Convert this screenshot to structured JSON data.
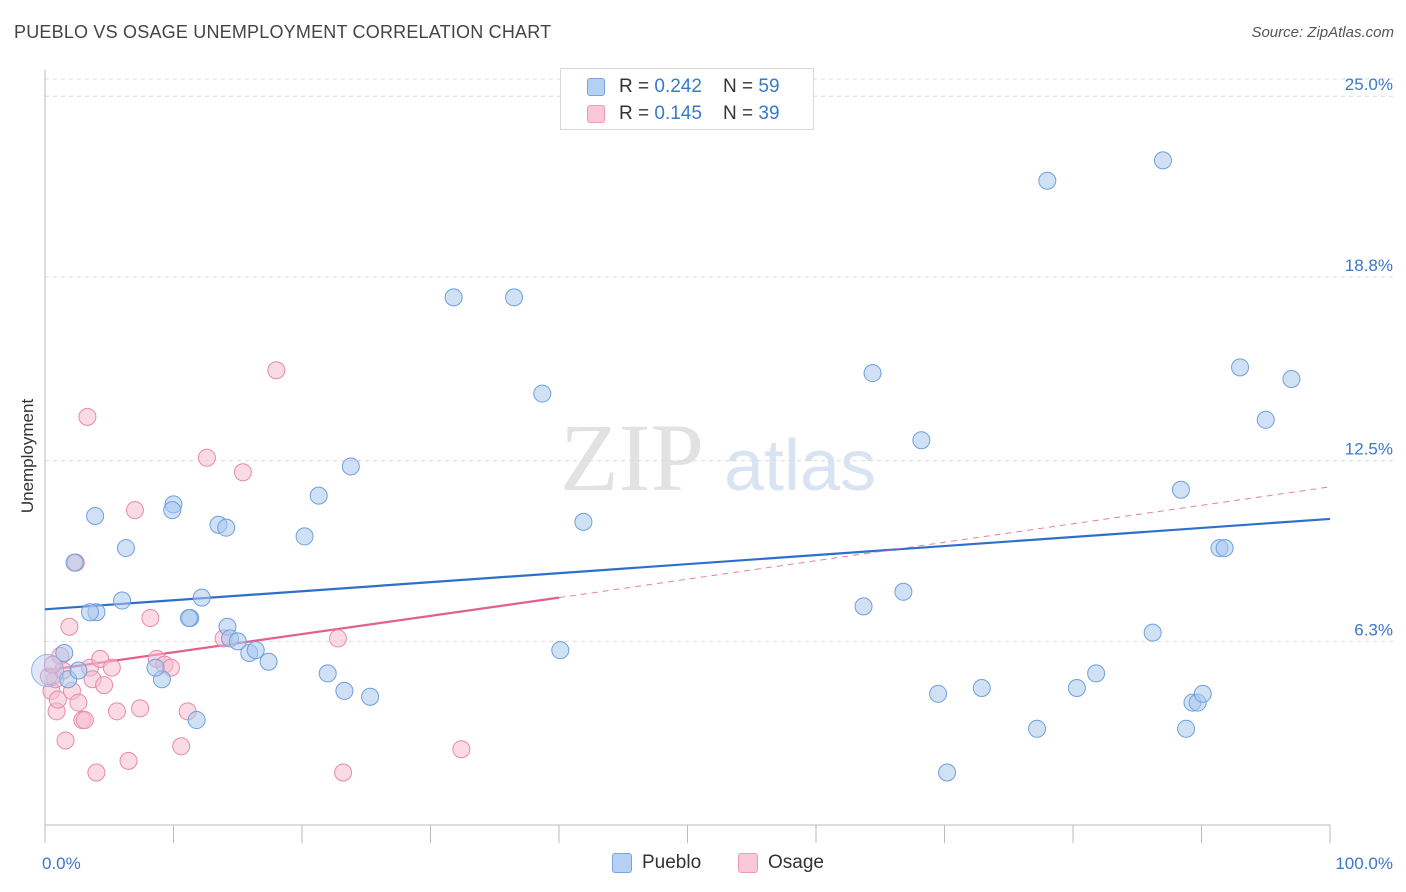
{
  "chart_data": {
    "type": "scatter",
    "title": "PUEBLO VS OSAGE UNEMPLOYMENT CORRELATION CHART",
    "source": "Source: ZipAtlas.com",
    "watermark": {
      "zip": "ZIP",
      "atlas": "atlas"
    },
    "xlabel": "",
    "ylabel": "Unemployment",
    "xlim": [
      0,
      100
    ],
    "ylim": [
      0,
      25.9
    ],
    "x_tick_labels": [
      "0.0%",
      "100.0%"
    ],
    "y_ticks": [
      {
        "value": 6.3,
        "label": "6.3%"
      },
      {
        "value": 12.5,
        "label": "12.5%"
      },
      {
        "value": 18.8,
        "label": "18.8%"
      },
      {
        "value": 25.0,
        "label": "25.0%"
      }
    ],
    "grid": true,
    "legend_stats": [
      {
        "series": "Pueblo",
        "r_label": "R = ",
        "r_value": "0.242",
        "n_label": "N = ",
        "n_value": "59"
      },
      {
        "series": "Osage",
        "r_label": "R = ",
        "r_value": "0.145",
        "n_label": "N = ",
        "n_value": "39"
      }
    ],
    "series": [
      {
        "name": "Pueblo",
        "color": "#a9c8ef",
        "edge": "#6f9fdc",
        "trend": {
          "x0": 0,
          "y0": 7.4,
          "x1": 100,
          "y1": 10.5,
          "color": "#2f6fcc"
        },
        "points": [
          [
            22.0,
            5.2
          ],
          [
            1.5,
            5.9
          ],
          [
            1.8,
            5.0
          ],
          [
            4.0,
            7.3
          ],
          [
            6.0,
            7.7
          ],
          [
            3.5,
            7.3
          ],
          [
            2.3,
            9.0
          ],
          [
            3.9,
            10.6
          ],
          [
            6.3,
            9.5
          ],
          [
            9.1,
            5.0
          ],
          [
            8.6,
            5.4
          ],
          [
            10.0,
            11.0
          ],
          [
            9.9,
            10.8
          ],
          [
            11.3,
            7.1
          ],
          [
            11.8,
            3.6
          ],
          [
            11.2,
            7.1
          ],
          [
            12.2,
            7.8
          ],
          [
            13.5,
            10.3
          ],
          [
            14.1,
            10.2
          ],
          [
            14.2,
            6.8
          ],
          [
            14.4,
            6.4
          ],
          [
            15.0,
            6.3
          ],
          [
            15.9,
            5.9
          ],
          [
            16.4,
            6.0
          ],
          [
            17.4,
            5.6
          ],
          [
            20.2,
            9.9
          ],
          [
            21.3,
            11.3
          ],
          [
            23.3,
            4.6
          ],
          [
            23.8,
            12.3
          ],
          [
            25.3,
            4.4
          ],
          [
            31.8,
            18.1
          ],
          [
            36.5,
            18.1
          ],
          [
            38.7,
            14.8
          ],
          [
            40.1,
            6.0
          ],
          [
            41.9,
            10.4
          ],
          [
            63.7,
            7.5
          ],
          [
            64.4,
            15.5
          ],
          [
            66.8,
            8.0
          ],
          [
            68.2,
            13.2
          ],
          [
            69.5,
            4.5
          ],
          [
            70.2,
            1.8
          ],
          [
            72.9,
            4.7
          ],
          [
            77.2,
            3.3
          ],
          [
            78.0,
            22.1
          ],
          [
            80.3,
            4.7
          ],
          [
            81.8,
            5.2
          ],
          [
            86.2,
            6.6
          ],
          [
            87.0,
            22.8
          ],
          [
            88.4,
            11.5
          ],
          [
            88.8,
            3.3
          ],
          [
            89.3,
            4.2
          ],
          [
            89.7,
            4.2
          ],
          [
            90.1,
            4.5
          ],
          [
            91.4,
            9.5
          ],
          [
            91.8,
            9.5
          ],
          [
            93.0,
            15.7
          ],
          [
            95.0,
            13.9
          ],
          [
            97.0,
            15.3
          ],
          [
            2.6,
            5.3
          ]
        ]
      },
      {
        "name": "Osage",
        "color": "#f6bcd0",
        "edge": "#e88aaa",
        "trend": {
          "x0": 0,
          "y0": 5.3,
          "x1": 40,
          "y1": 7.8,
          "color": "#e0608e",
          "ext_x1": 100,
          "ext_y1": 11.6
        },
        "points": [
          [
            0.5,
            4.6
          ],
          [
            0.8,
            5.0
          ],
          [
            0.9,
            3.9
          ],
          [
            1.0,
            4.3
          ],
          [
            1.2,
            5.8
          ],
          [
            1.4,
            5.3
          ],
          [
            1.6,
            2.9
          ],
          [
            1.9,
            6.8
          ],
          [
            2.1,
            4.6
          ],
          [
            2.4,
            9.0
          ],
          [
            2.6,
            4.2
          ],
          [
            2.9,
            3.6
          ],
          [
            3.1,
            3.6
          ],
          [
            3.3,
            14.0
          ],
          [
            3.5,
            5.4
          ],
          [
            3.7,
            5.0
          ],
          [
            4.0,
            1.8
          ],
          [
            4.3,
            5.7
          ],
          [
            4.6,
            4.8
          ],
          [
            5.2,
            5.4
          ],
          [
            5.6,
            3.9
          ],
          [
            6.5,
            2.2
          ],
          [
            7.0,
            10.8
          ],
          [
            7.4,
            4.0
          ],
          [
            8.2,
            7.1
          ],
          [
            8.7,
            5.7
          ],
          [
            9.3,
            5.5
          ],
          [
            9.8,
            5.4
          ],
          [
            10.6,
            2.7
          ],
          [
            11.1,
            3.9
          ],
          [
            12.6,
            12.6
          ],
          [
            13.9,
            6.4
          ],
          [
            15.4,
            12.1
          ],
          [
            18.0,
            15.6
          ],
          [
            22.8,
            6.4
          ],
          [
            23.2,
            1.8
          ],
          [
            32.4,
            2.6
          ],
          [
            0.3,
            5.1
          ],
          [
            0.6,
            5.5
          ]
        ]
      }
    ]
  }
}
